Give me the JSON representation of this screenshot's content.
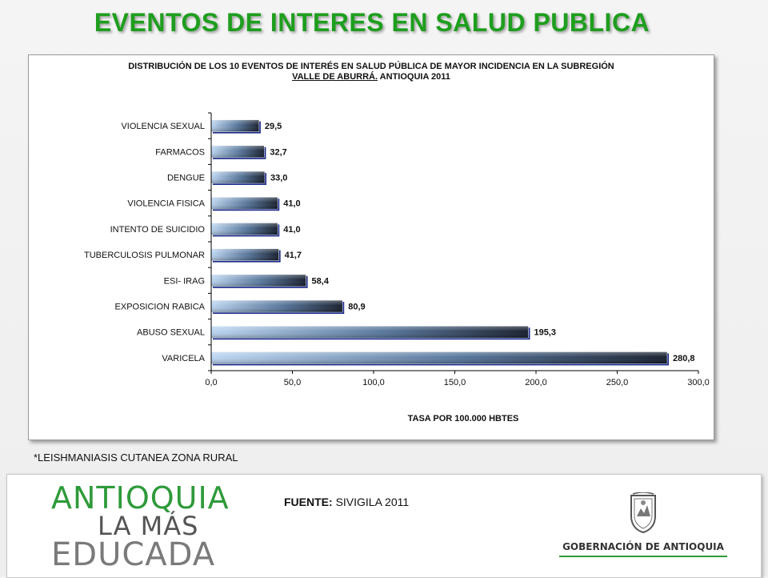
{
  "slide": {
    "title": "EVENTOS DE INTERES EN SALUD PUBLICA",
    "title_color": "#1e9e1e",
    "footnote": "*LEISHMANIASIS CUTANEA ZONA RURAL",
    "source_label": "FUENTE:",
    "source_value": "SIVIGILA 2011",
    "logo_left": {
      "line1": "ANTIOQUIA",
      "line2": "LA MÁS",
      "line3": "EDUCADA"
    },
    "logo_right": {
      "text": "GOBERNACIÓN DE ANTIOQUIA",
      "icon": "coat-of-arms-icon"
    }
  },
  "chart_data": {
    "type": "bar",
    "orientation": "horizontal",
    "title_line1": "DISTRIBUCIÓN DE LOS 10 EVENTOS DE INTERÉS EN SALUD PÚBLICA DE MAYOR INCIDENCIA EN LA SUBREGIÓN",
    "title_line2_highlight": "VALLE DE ABURRÁ.",
    "title_line2_rest": " ANTIOQUIA 2011",
    "xlabel": "TASA POR 100.000 HBTES",
    "ylabel": "",
    "xlim": [
      0,
      300
    ],
    "xticks": [
      0,
      50,
      100,
      150,
      200,
      250,
      300
    ],
    "xtick_labels": [
      "0,0",
      "50,0",
      "100,0",
      "150,0",
      "200,0",
      "250,0",
      "300,0"
    ],
    "categories": [
      "VIOLENCIA SEXUAL",
      "FARMACOS",
      "DENGUE",
      "VIOLENCIA FISICA",
      "INTENTO DE SUICIDIO",
      "TUBERCULOSIS PULMONAR",
      "ESI- IRAG",
      "EXPOSICION RABICA",
      "ABUSO SEXUAL",
      "VARICELA"
    ],
    "values": [
      29.5,
      32.7,
      33.0,
      41.0,
      41.0,
      41.7,
      58.4,
      80.9,
      195.3,
      280.8
    ],
    "value_labels": [
      "29,5",
      "32,7",
      "33,0",
      "41,0",
      "41,0",
      "41,7",
      "58,4",
      "80,9",
      "195,3",
      "280,8"
    ],
    "grid": false,
    "legend": "none",
    "bar_gradient": [
      "#b9d4f0",
      "#4f6f95",
      "#0e1626"
    ]
  }
}
